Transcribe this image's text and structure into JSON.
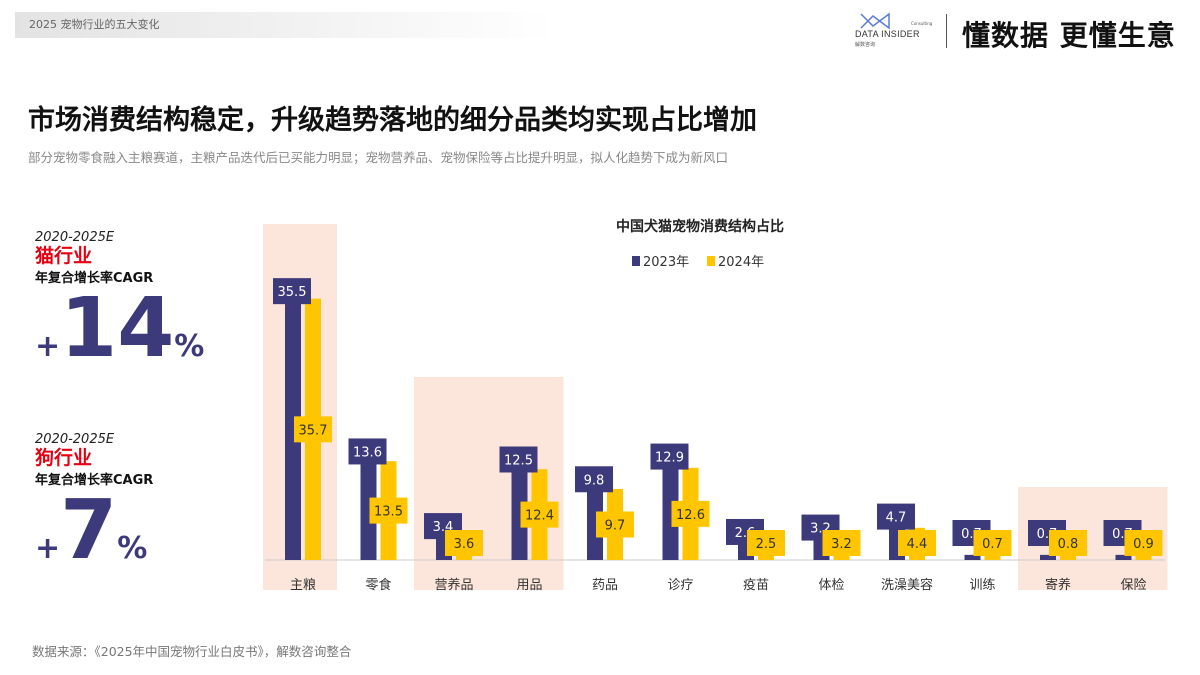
{
  "header": {
    "breadcrumb": "2025  宠物行业的五大变化",
    "logo_text": "DATA INSIDER",
    "logo_sub": "解数咨询",
    "logo_small": "Consulting",
    "slogan": "懂数据 更懂生意"
  },
  "title": "市场消费结构稳定，升级趋势落地的细分品类均实现占比增加",
  "subtitle": "部分宠物零食融入主粮赛道，主粮产品迭代后已买能力明显；宠物营养品、宠物保险等占比提升明显，拟人化趋势下成为新风口",
  "kpis": [
    {
      "period": "2020-2025E",
      "industry": "猫行业",
      "label": "年复合增长率CAGR",
      "sign": "+",
      "value": "14",
      "unit": "%"
    },
    {
      "period": "2020-2025E",
      "industry": "狗行业",
      "label": "年复合增长率CAGR",
      "sign": "+",
      "value": "7",
      "unit": "%"
    }
  ],
  "source": "数据来源：《2025年中国宠物行业白皮书》，解数咨询整合",
  "chart_data": {
    "type": "bar",
    "title": "中国犬猫宠物消费结构占比",
    "categories": [
      "主粮",
      "零食",
      "营养品",
      "用品",
      "药品",
      "诊疗",
      "疫苗",
      "体检",
      "洗澡美容",
      "训练",
      "寄养",
      "保险"
    ],
    "series": [
      {
        "name": "2023年",
        "color": "#3d3a7c",
        "values": [
          35.5,
          13.6,
          3.4,
          12.5,
          9.8,
          12.9,
          2.6,
          3.2,
          4.7,
          0.7,
          0.7,
          0.7
        ]
      },
      {
        "name": "2024年",
        "color": "#ffc600",
        "values": [
          35.7,
          13.5,
          3.6,
          12.4,
          9.7,
          12.6,
          2.5,
          3.2,
          4.4,
          0.7,
          0.8,
          0.9
        ]
      }
    ],
    "highlighted_categories": [
      "主粮",
      "营养品",
      "用品",
      "寄养",
      "保险"
    ],
    "legend": "top-center",
    "ylim": [
      0,
      36
    ]
  }
}
